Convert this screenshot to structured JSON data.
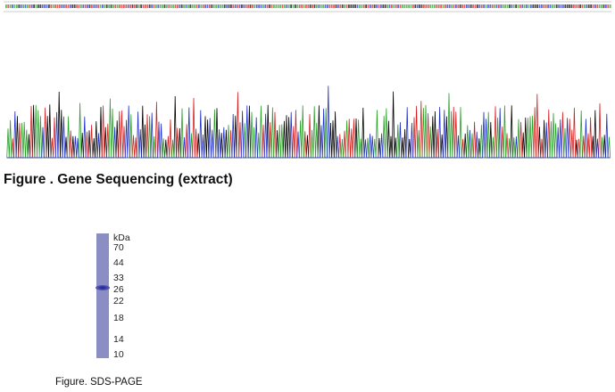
{
  "figures": [
    {
      "caption": "Figure . Gene Sequencing (extract)"
    },
    {
      "caption": "Figure. SDS-PAGE",
      "gel": {
        "unit": "kDa",
        "markers": [
          "70",
          "44",
          "33",
          "26",
          "22",
          "18",
          "14",
          "10"
        ]
      }
    }
  ]
}
